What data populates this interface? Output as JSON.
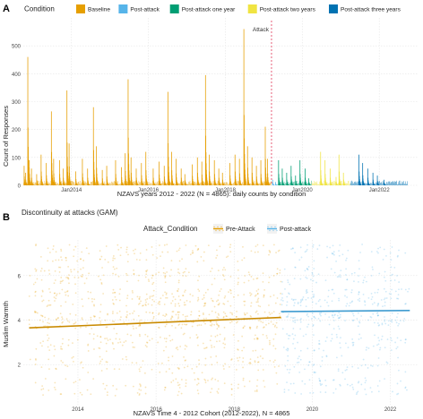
{
  "colors": {
    "baseline": "#E69F00",
    "post_attack": "#56B4E9",
    "post_attack_one_year": "#009E73",
    "post_attack_two_years": "#F0E442",
    "post_attack_three_years": "#0072B2",
    "attack_line": "#E8607A",
    "grid": "#E5E5E5"
  },
  "chart_data": [
    {
      "panel_tag": "A",
      "type": "bar",
      "title": "",
      "xlabel": "NZAVS years 2012 - 2022 (N = 4865): daily counts by condition",
      "ylabel": "Count of Responses",
      "ylim": [
        0,
        600
      ],
      "yticks": [
        0,
        100,
        200,
        300,
        400,
        500
      ],
      "xlim": [
        "2012-10-01",
        "2022-12-31"
      ],
      "xticks": [
        {
          "date": "2014-01-01",
          "label": "Jan2014"
        },
        {
          "date": "2016-01-01",
          "label": "Jan2016"
        },
        {
          "date": "2018-01-01",
          "label": "Jan2018"
        },
        {
          "date": "2020-01-01",
          "label": "Jan2020"
        },
        {
          "date": "2022-01-01",
          "label": "Jan2022"
        }
      ],
      "grid": true,
      "legend": {
        "title": "Condition",
        "position": "top",
        "entries": [
          "Baseline",
          "Post-attack",
          "Post-attack one year",
          "Post-attack two years",
          "Post-attack three years"
        ]
      },
      "annotation": {
        "label": "Attack",
        "date": "2019-03-15"
      },
      "series": [
        {
          "name": "Baseline",
          "color_key": "baseline",
          "spikes": [
            {
              "date": "2012-10-08",
              "value": 70
            },
            {
              "date": "2012-10-22",
              "value": 45
            },
            {
              "date": "2012-11-12",
              "value": 460
            },
            {
              "date": "2012-11-26",
              "value": 90
            },
            {
              "date": "2012-12-17",
              "value": 60
            },
            {
              "date": "2013-02-04",
              "value": 40
            },
            {
              "date": "2013-03-18",
              "value": 110
            },
            {
              "date": "2013-05-06",
              "value": 80
            },
            {
              "date": "2013-06-24",
              "value": 265
            },
            {
              "date": "2013-07-15",
              "value": 95
            },
            {
              "date": "2013-09-09",
              "value": 90
            },
            {
              "date": "2013-10-14",
              "value": 60
            },
            {
              "date": "2013-11-18",
              "value": 340
            },
            {
              "date": "2013-12-09",
              "value": 150
            },
            {
              "date": "2014-02-10",
              "value": 50
            },
            {
              "date": "2014-04-14",
              "value": 95
            },
            {
              "date": "2014-06-02",
              "value": 60
            },
            {
              "date": "2014-07-28",
              "value": 280
            },
            {
              "date": "2014-08-25",
              "value": 140
            },
            {
              "date": "2014-10-20",
              "value": 55
            },
            {
              "date": "2014-12-01",
              "value": 70
            },
            {
              "date": "2015-02-23",
              "value": 90
            },
            {
              "date": "2015-04-20",
              "value": 65
            },
            {
              "date": "2015-05-25",
              "value": 115
            },
            {
              "date": "2015-06-22",
              "value": 380
            },
            {
              "date": "2015-07-20",
              "value": 100
            },
            {
              "date": "2015-09-07",
              "value": 60
            },
            {
              "date": "2015-10-26",
              "value": 80
            },
            {
              "date": "2015-12-07",
              "value": 120
            },
            {
              "date": "2016-02-15",
              "value": 60
            },
            {
              "date": "2016-04-11",
              "value": 85
            },
            {
              "date": "2016-05-30",
              "value": 70
            },
            {
              "date": "2016-07-04",
              "value": 335
            },
            {
              "date": "2016-08-08",
              "value": 120
            },
            {
              "date": "2016-09-19",
              "value": 95
            },
            {
              "date": "2016-11-07",
              "value": 60
            },
            {
              "date": "2016-12-12",
              "value": 40
            },
            {
              "date": "2017-02-20",
              "value": 75
            },
            {
              "date": "2017-04-10",
              "value": 100
            },
            {
              "date": "2017-05-22",
              "value": 85
            },
            {
              "date": "2017-06-26",
              "value": 395
            },
            {
              "date": "2017-07-31",
              "value": 110
            },
            {
              "date": "2017-09-18",
              "value": 90
            },
            {
              "date": "2017-10-30",
              "value": 60
            },
            {
              "date": "2017-12-04",
              "value": 45
            },
            {
              "date": "2018-02-12",
              "value": 80
            },
            {
              "date": "2018-04-02",
              "value": 110
            },
            {
              "date": "2018-05-14",
              "value": 95
            },
            {
              "date": "2018-06-25",
              "value": 560
            },
            {
              "date": "2018-07-30",
              "value": 140
            },
            {
              "date": "2018-09-10",
              "value": 100
            },
            {
              "date": "2018-10-22",
              "value": 70
            },
            {
              "date": "2018-12-03",
              "value": 90
            },
            {
              "date": "2019-01-14",
              "value": 210
            },
            {
              "date": "2019-02-04",
              "value": 95
            }
          ]
        },
        {
          "name": "Post-attack",
          "color_key": "post_attack",
          "spikes": [
            {
              "date": "2019-03-25",
              "value": 20
            },
            {
              "date": "2019-04-22",
              "value": 12
            }
          ]
        },
        {
          "name": "Post-attack one year",
          "color_key": "post_attack_one_year",
          "spikes": [
            {
              "date": "2019-05-20",
              "value": 90
            },
            {
              "date": "2019-06-24",
              "value": 60
            },
            {
              "date": "2019-08-05",
              "value": 45
            },
            {
              "date": "2019-09-16",
              "value": 70
            },
            {
              "date": "2019-10-28",
              "value": 35
            },
            {
              "date": "2019-12-09",
              "value": 90
            },
            {
              "date": "2020-01-27",
              "value": 60
            },
            {
              "date": "2020-03-02",
              "value": 25
            }
          ]
        },
        {
          "name": "Post-attack two years",
          "color_key": "post_attack_two_years",
          "spikes": [
            {
              "date": "2020-06-22",
              "value": 120
            },
            {
              "date": "2020-08-03",
              "value": 90
            },
            {
              "date": "2020-09-21",
              "value": 60
            },
            {
              "date": "2020-11-16",
              "value": 30
            },
            {
              "date": "2020-12-14",
              "value": 110
            },
            {
              "date": "2021-01-25",
              "value": 45
            }
          ]
        },
        {
          "name": "Post-attack three years",
          "color_key": "post_attack_three_years",
          "spikes": [
            {
              "date": "2021-06-21",
              "value": 110
            },
            {
              "date": "2021-07-26",
              "value": 80
            },
            {
              "date": "2021-09-13",
              "value": 60
            },
            {
              "date": "2021-11-01",
              "value": 45
            },
            {
              "date": "2021-12-13",
              "value": 35
            },
            {
              "date": "2022-02-14",
              "value": 20
            }
          ]
        }
      ]
    },
    {
      "panel_tag": "B",
      "type": "scatter",
      "title": "Discontinuity at attacks (GAM)",
      "xlabel": "NZAVS Time 4 - 2012 Cohort (2012-2022), N = 4865",
      "ylabel": "Muslim Warmth",
      "ylim": [
        0.2,
        7.6
      ],
      "yticks": [
        2,
        4,
        6
      ],
      "xlim": [
        2012.6,
        2022.7
      ],
      "xticks": [
        2014,
        2016,
        2018,
        2020,
        2022
      ],
      "grid": true,
      "legend": {
        "title": "Attack_Condition",
        "position": "top",
        "entries": [
          "Pre-Attack",
          "Post-attack"
        ]
      },
      "series": [
        {
          "name": "Pre-Attack",
          "color_key": "baseline",
          "x_range": [
            2012.75,
            2019.2
          ],
          "fit": {
            "x": [
              2012.75,
              2019.2
            ],
            "y": [
              3.65,
              4.12
            ]
          }
        },
        {
          "name": "Post-attack",
          "color_key": "post_attack",
          "x_range": [
            2019.2,
            2022.5
          ],
          "fit": {
            "x": [
              2019.2,
              2022.5
            ],
            "y": [
              4.38,
              4.43
            ]
          }
        }
      ],
      "response_levels": [
        1,
        2,
        3,
        4,
        5,
        6,
        7
      ]
    }
  ]
}
